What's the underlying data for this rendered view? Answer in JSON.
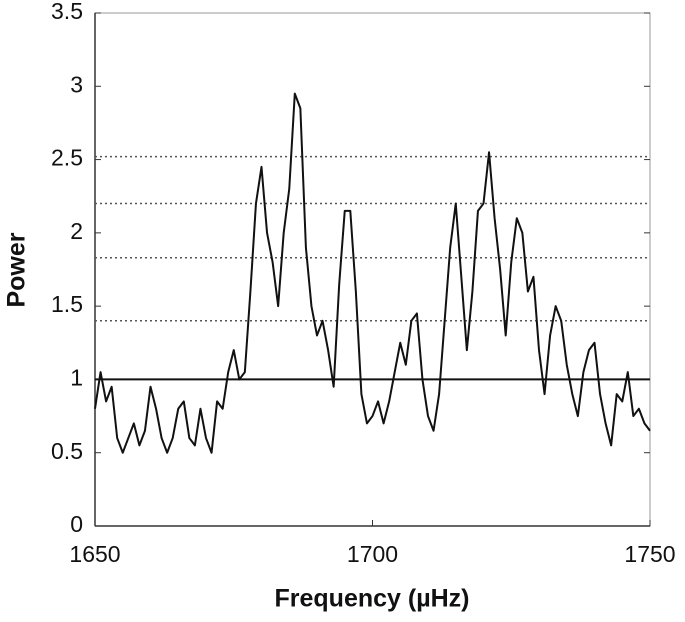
{
  "chart_data": {
    "type": "line",
    "xlabel": "Frequency (µHz)",
    "ylabel": "Power",
    "x": [
      1650,
      1651,
      1652,
      1653,
      1654,
      1655,
      1656,
      1657,
      1658,
      1659,
      1660,
      1661,
      1662,
      1663,
      1664,
      1665,
      1666,
      1667,
      1668,
      1669,
      1670,
      1671,
      1672,
      1673,
      1674,
      1675,
      1676,
      1677,
      1678,
      1679,
      1680,
      1681,
      1682,
      1683,
      1684,
      1685,
      1686,
      1687,
      1688,
      1689,
      1690,
      1691,
      1692,
      1693,
      1694,
      1695,
      1696,
      1697,
      1698,
      1699,
      1700,
      1701,
      1702,
      1703,
      1704,
      1705,
      1706,
      1707,
      1708,
      1709,
      1710,
      1711,
      1712,
      1713,
      1714,
      1715,
      1716,
      1717,
      1718,
      1719,
      1720,
      1721,
      1722,
      1723,
      1724,
      1725,
      1726,
      1727,
      1728,
      1729,
      1730,
      1731,
      1732,
      1733,
      1734,
      1735,
      1736,
      1737,
      1738,
      1739,
      1740,
      1741,
      1742,
      1743,
      1744,
      1745,
      1746,
      1747,
      1748,
      1749,
      1750
    ],
    "series": [
      {
        "color": "#111111",
        "values": [
          0.8,
          1.05,
          0.85,
          0.95,
          0.6,
          0.5,
          0.6,
          0.7,
          0.55,
          0.65,
          0.95,
          0.8,
          0.6,
          0.5,
          0.6,
          0.8,
          0.85,
          0.6,
          0.55,
          0.8,
          0.6,
          0.5,
          0.85,
          0.8,
          1.05,
          1.2,
          1.0,
          1.05,
          1.6,
          2.2,
          2.45,
          2.0,
          1.8,
          1.5,
          2.0,
          2.3,
          2.95,
          2.85,
          1.9,
          1.5,
          1.3,
          1.4,
          1.2,
          0.95,
          1.65,
          2.15,
          2.15,
          1.6,
          0.9,
          0.7,
          0.75,
          0.85,
          0.7,
          0.85,
          1.05,
          1.25,
          1.1,
          1.4,
          1.45,
          1.0,
          0.75,
          0.65,
          0.9,
          1.4,
          1.9,
          2.2,
          1.7,
          1.2,
          1.6,
          2.15,
          2.2,
          2.55,
          2.1,
          1.75,
          1.3,
          1.8,
          2.1,
          2.0,
          1.6,
          1.7,
          1.2,
          0.9,
          1.3,
          1.5,
          1.4,
          1.1,
          0.9,
          0.75,
          1.05,
          1.2,
          1.25,
          0.9,
          0.7,
          0.55,
          0.9,
          0.85,
          1.05,
          0.75,
          0.8,
          0.7,
          0.65
        ]
      }
    ],
    "solid_hlines": [
      1
    ],
    "dotted_hlines": [
      2.52,
      2.2,
      1.83,
      1.4
    ],
    "xlim": [
      1650,
      1750
    ],
    "xticks": [
      1650,
      1700,
      1750
    ],
    "ylim": [
      0,
      3.5
    ],
    "yticks": [
      0,
      0.5,
      1,
      1.5,
      2,
      2.5,
      3,
      3.5
    ]
  }
}
